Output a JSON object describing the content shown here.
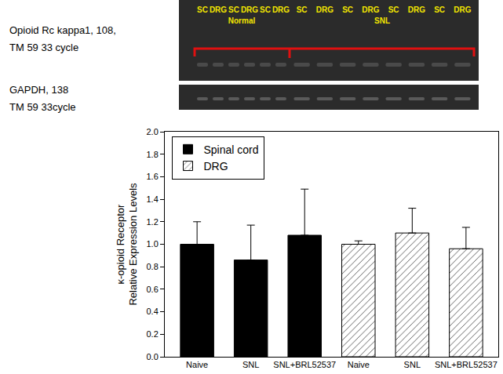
{
  "gel": {
    "panels": [
      {
        "label_lines": [
          "Opioid Rc kappa1, 108,",
          "TM 59  33 cycle"
        ]
      },
      {
        "label_lines": [
          "GAPDH, 138",
          "TM 59  33cycle"
        ]
      }
    ],
    "groups": [
      {
        "name": "Normal",
        "lanes": [
          "SC",
          "DRG",
          "SC",
          "DRG",
          "SC",
          "DRG"
        ]
      },
      {
        "name": "SNL",
        "lanes": [
          "SC",
          "DRG",
          "SC",
          "DRG",
          "SC",
          "DRG",
          "SC",
          "DRG"
        ]
      }
    ]
  },
  "chart_data": {
    "type": "bar",
    "y_label": "κ-opioid Receptor\nRelative Expression Levels",
    "categories": [
      "Naive",
      "SNL",
      "SNL+BRL52537",
      "Naive",
      "SNL",
      "SNL+BRL52537"
    ],
    "series": [
      {
        "name": "Spinal cord",
        "color": "#000000",
        "marker": "solid",
        "values": [
          1.0,
          0.86,
          1.08,
          null,
          null,
          null
        ],
        "error": [
          0.2,
          0.31,
          0.41,
          null,
          null,
          null
        ]
      },
      {
        "name": "DRG",
        "color": "#555555",
        "marker": "hatch",
        "values": [
          null,
          null,
          null,
          1.0,
          1.1,
          0.96
        ],
        "error": [
          null,
          null,
          null,
          0.03,
          0.22,
          0.19
        ]
      }
    ],
    "ylim": [
      0,
      2.0
    ],
    "yticks": [
      {
        "value": 0,
        "label": "0.0"
      },
      0.2,
      0.4,
      0.6,
      0.8,
      {
        "value": 1,
        "label": "1.0"
      },
      1.2,
      1.4,
      1.6,
      1.8,
      {
        "value": 2,
        "label": "2.0"
      }
    ],
    "legend": "upper left",
    "grid": false
  }
}
